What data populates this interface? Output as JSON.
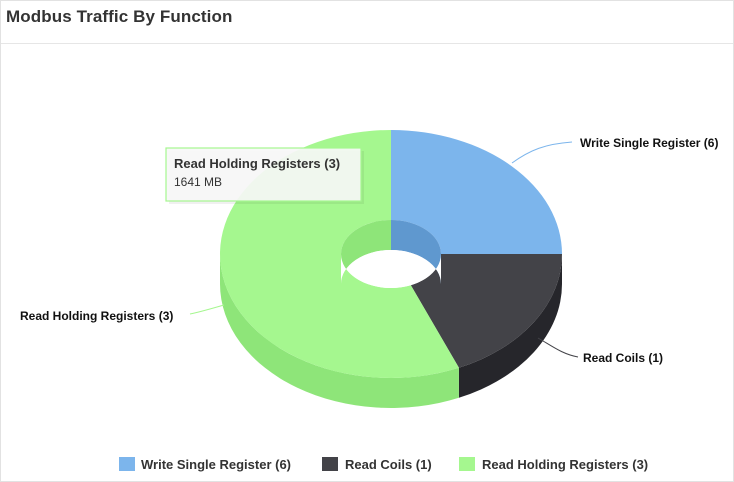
{
  "panel": {
    "title": "Modbus Traffic By Function"
  },
  "chart_data": {
    "type": "pie",
    "title": "",
    "style": "3d-donut",
    "series": [
      {
        "name": "Write Single Register (6)",
        "value": 0.25,
        "color": "#7cb5ec",
        "side_color": "#5f98cf"
      },
      {
        "name": "Read Coils (1)",
        "value": 0.185,
        "color": "#434348",
        "side_color": "#26262b"
      },
      {
        "name": "Read Holding Registers (3)",
        "value": 0.565,
        "color": "#a5f78f",
        "side_color": "#8ee579"
      }
    ],
    "tooltip": {
      "title": "Read Holding Registers (3)",
      "value": "1641 MB"
    },
    "legend_position": "bottom"
  }
}
